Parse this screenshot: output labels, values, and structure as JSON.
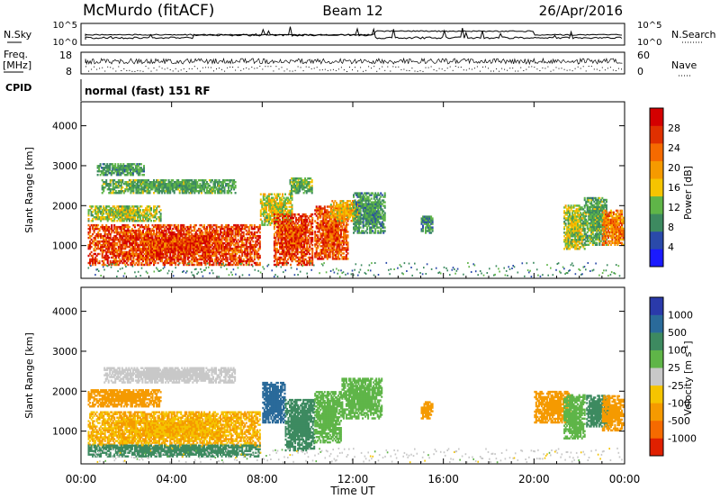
{
  "header": {
    "station": "McMurdo (fitACF)",
    "beam": "Beam 12",
    "date": "26/Apr/2016"
  },
  "noise_panel": {
    "left_label": "N.Sky",
    "right_label": "N.Search",
    "left_ticks": [
      "10^5",
      "10^0"
    ],
    "right_ticks": [
      "10^5",
      "10^0"
    ]
  },
  "freq_panel": {
    "left_label_top": "Freq.",
    "left_label_unit": "[MHz]",
    "left_ticks": [
      "18",
      "8"
    ],
    "right_label": "Nave",
    "right_ticks": [
      "60",
      "0"
    ]
  },
  "cpid_panel": {
    "label": "CPID",
    "text": "normal (fast) 151 RF"
  },
  "x_axis": {
    "title": "Time UT",
    "ticks": [
      "00:00",
      "04:00",
      "08:00",
      "12:00",
      "16:00",
      "20:00",
      "00:00"
    ]
  },
  "colorbars": {
    "power": {
      "title": "Power [dB]",
      "ticks": [
        "4",
        "8",
        "12",
        "16",
        "20",
        "24",
        "28"
      ],
      "colors": [
        "#1a1aff",
        "#2a4aaa",
        "#3d8a60",
        "#5fb548",
        "#f5c400",
        "#f59a00",
        "#f56a00",
        "#e03000",
        "#d40000"
      ]
    },
    "velocity": {
      "title": "Velocity [m s",
      "title_sup": "-1",
      "title_end": "]",
      "ticks": [
        "1000",
        "500",
        "100",
        "25",
        "-25",
        "-100",
        "-500",
        "-1000"
      ],
      "colors": [
        "#2a3aaa",
        "#2a6a9a",
        "#3d8a60",
        "#5fb548",
        "#c8c8c8",
        "#f5c400",
        "#f59a00",
        "#f56a00",
        "#e02000"
      ]
    }
  },
  "chart_data": [
    {
      "type": "heatmap",
      "title": "",
      "xlabel": "Time UT",
      "ylabel": "Slant Range [km]",
      "xlim": [
        0,
        24
      ],
      "ylim": [
        180,
        4600
      ],
      "yticks": [
        1000,
        2000,
        3000,
        4000
      ],
      "colorbar": {
        "label": "Power [dB]",
        "range": [
          0,
          32
        ]
      },
      "blobs": [
        {
          "t0": 0.3,
          "t1": 7.9,
          "r0": 500,
          "r1": 1500,
          "v": 26
        },
        {
          "t0": 0.3,
          "t1": 3.5,
          "r0": 1600,
          "r1": 2000,
          "v": 14
        },
        {
          "t0": 0.9,
          "t1": 6.8,
          "r0": 2300,
          "r1": 2650,
          "v": 11
        },
        {
          "t0": 0.7,
          "t1": 2.8,
          "r0": 2750,
          "r1": 3050,
          "v": 10
        },
        {
          "t0": 7.9,
          "t1": 9.3,
          "r0": 1500,
          "r1": 2300,
          "v": 15
        },
        {
          "t0": 8.5,
          "t1": 10.2,
          "r0": 500,
          "r1": 1800,
          "v": 26
        },
        {
          "t0": 9.2,
          "t1": 10.2,
          "r0": 2300,
          "r1": 2700,
          "v": 12
        },
        {
          "t0": 10.3,
          "t1": 11.8,
          "r0": 650,
          "r1": 2000,
          "v": 25
        },
        {
          "t0": 11.0,
          "t1": 12.3,
          "r0": 1600,
          "r1": 2100,
          "v": 18
        },
        {
          "t0": 12.0,
          "t1": 13.4,
          "r0": 1300,
          "r1": 2300,
          "v": 10
        },
        {
          "t0": 15.0,
          "t1": 15.5,
          "r0": 1300,
          "r1": 1750,
          "v": 9
        },
        {
          "t0": 21.3,
          "t1": 22.2,
          "r0": 900,
          "r1": 2000,
          "v": 14
        },
        {
          "t0": 22.2,
          "t1": 23.2,
          "r0": 1000,
          "r1": 2200,
          "v": 11
        },
        {
          "t0": 23.0,
          "t1": 23.95,
          "r0": 1000,
          "r1": 1900,
          "v": 22
        }
      ]
    },
    {
      "type": "heatmap",
      "title": "",
      "xlabel": "Time UT",
      "ylabel": "Slant Range [km]",
      "xlim": [
        0,
        24
      ],
      "ylim": [
        180,
        4600
      ],
      "yticks": [
        1000,
        2000,
        3000,
        4000
      ],
      "colorbar": {
        "label": "Velocity [m s-1]",
        "levels": [
          1000,
          500,
          100,
          25,
          -25,
          -100,
          -500,
          -1000
        ]
      },
      "blobs": [
        {
          "t0": 0.3,
          "t1": 7.9,
          "r0": 600,
          "r1": 1500,
          "v": -100
        },
        {
          "t0": 0.3,
          "t1": 7.9,
          "r0": 350,
          "r1": 650,
          "v": 250
        },
        {
          "t0": 0.3,
          "t1": 3.5,
          "r0": 1600,
          "r1": 2050,
          "v": -300
        },
        {
          "t0": 1.0,
          "t1": 6.8,
          "r0": 2200,
          "r1": 2600,
          "v": 0
        },
        {
          "t0": 8.0,
          "t1": 9.0,
          "r0": 1200,
          "r1": 2200,
          "v": 700
        },
        {
          "t0": 9.0,
          "t1": 10.3,
          "r0": 500,
          "r1": 1800,
          "v": 200
        },
        {
          "t0": 10.3,
          "t1": 11.5,
          "r0": 700,
          "r1": 2000,
          "v": 60
        },
        {
          "t0": 11.5,
          "t1": 13.3,
          "r0": 1300,
          "r1": 2300,
          "v": 60
        },
        {
          "t0": 15.0,
          "t1": 15.5,
          "r0": 1300,
          "r1": 1750,
          "v": -300
        },
        {
          "t0": 20.0,
          "t1": 21.6,
          "r0": 1200,
          "r1": 2000,
          "v": -300
        },
        {
          "t0": 21.3,
          "t1": 22.2,
          "r0": 800,
          "r1": 1900,
          "v": 60
        },
        {
          "t0": 22.3,
          "t1": 23.3,
          "r0": 1100,
          "r1": 1900,
          "v": 300
        },
        {
          "t0": 23.0,
          "t1": 23.95,
          "r0": 1000,
          "r1": 1900,
          "v": -200
        }
      ]
    }
  ]
}
